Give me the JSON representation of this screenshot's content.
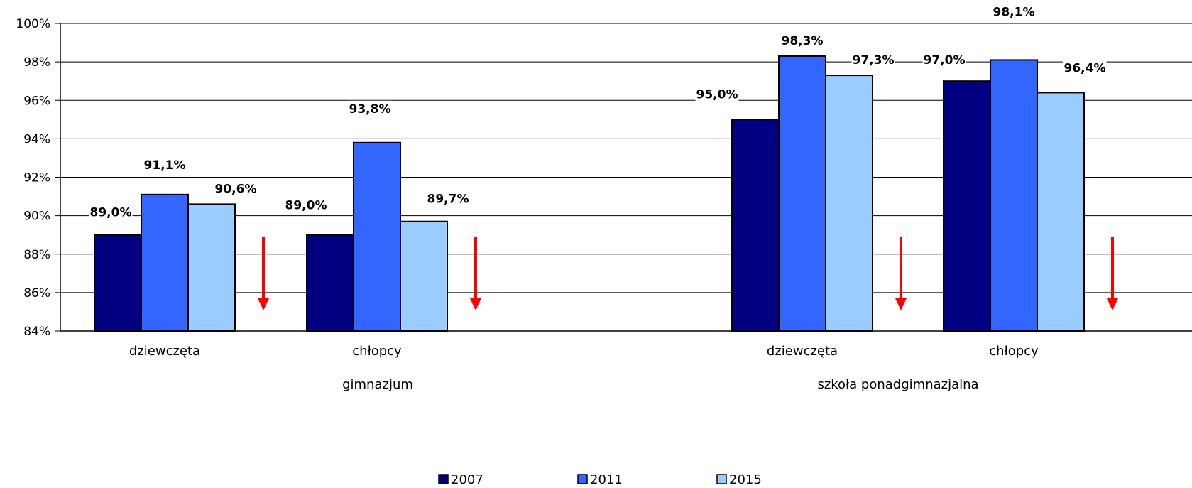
{
  "chart_data": {
    "type": "bar",
    "title": "",
    "xlabel": "",
    "ylabel": "",
    "ylim": [
      84,
      100
    ],
    "yticks": [
      "84%",
      "86%",
      "88%",
      "90%",
      "92%",
      "94%",
      "96%",
      "98%",
      "100%"
    ],
    "grid": true,
    "legend_position": "bottom",
    "groups": [
      {
        "label": "gimnazjum",
        "categories": [
          {
            "label": "dziewczęta",
            "values": [
              89.0,
              91.1,
              90.6
            ],
            "labels": [
              "89,0%",
              "91,1%",
              "90,6%"
            ],
            "trend": "down"
          },
          {
            "label": "chłopcy",
            "values": [
              89.0,
              93.8,
              89.7
            ],
            "labels": [
              "89,0%",
              "93,8%",
              "89,7%"
            ],
            "trend": "down"
          }
        ]
      },
      {
        "label": "szkoła ponadgimnazjalna",
        "categories": [
          {
            "label": "dziewczęta",
            "values": [
              95.0,
              98.3,
              97.3
            ],
            "labels": [
              "95,0%",
              "98,3%",
              "97,3%"
            ],
            "trend": "down"
          },
          {
            "label": "chłopcy",
            "values": [
              97.0,
              98.1,
              96.4
            ],
            "labels": [
              "97,0%",
              "98,1%",
              "96,4%"
            ],
            "trend": "down"
          }
        ]
      }
    ],
    "series": [
      {
        "name": "2007",
        "color": "#000080"
      },
      {
        "name": "2011",
        "color": "#3366FF"
      },
      {
        "name": "2015",
        "color": "#99CCFF"
      }
    ],
    "trend_color": "#FF0000"
  }
}
